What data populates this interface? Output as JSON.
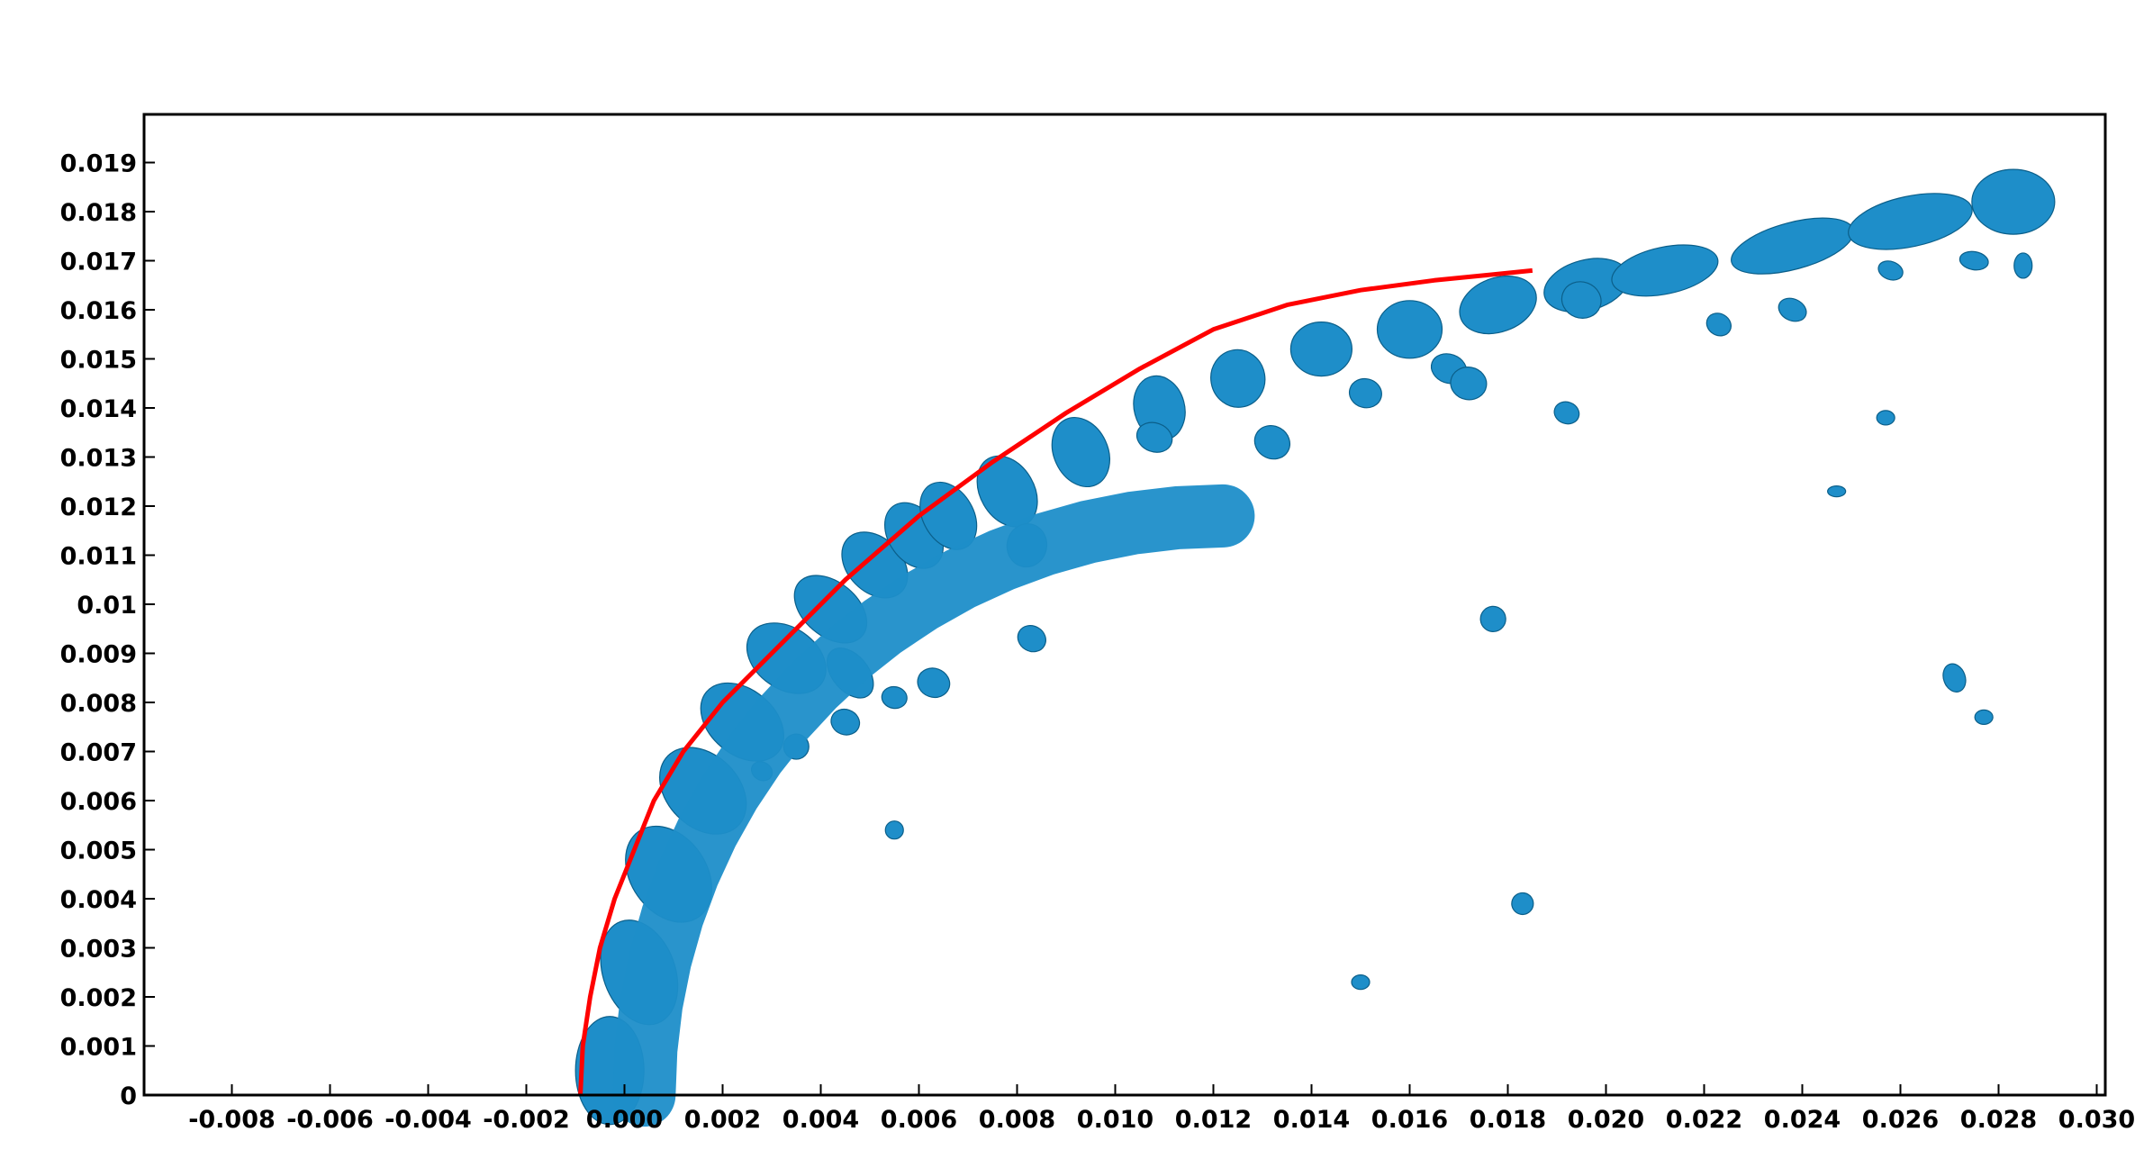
{
  "chart_data": {
    "type": "scatter",
    "title": "",
    "xlabel": "",
    "ylabel": "",
    "xlim": [
      -0.01,
      0.03
    ],
    "ylim": [
      0,
      0.0195
    ],
    "grid": false,
    "legend": "none",
    "colors": {
      "front_line": "#ff0000",
      "droplets": "#1e8ec9",
      "droplets_shadow": "#0b5f8a",
      "frame": "#000000"
    },
    "x_ticks": [
      {
        "value": -0.008,
        "label": "-0.008"
      },
      {
        "value": -0.006,
        "label": "-0.006"
      },
      {
        "value": -0.004,
        "label": "-0.004"
      },
      {
        "value": -0.002,
        "label": "-0.002"
      },
      {
        "value": 0.0,
        "label": "0.000"
      },
      {
        "value": 0.002,
        "label": "0.002"
      },
      {
        "value": 0.004,
        "label": "0.004"
      },
      {
        "value": 0.006,
        "label": "0.006"
      },
      {
        "value": 0.008,
        "label": "0.008"
      },
      {
        "value": 0.01,
        "label": "0.010"
      },
      {
        "value": 0.012,
        "label": "0.012"
      },
      {
        "value": 0.014,
        "label": "0.014"
      },
      {
        "value": 0.016,
        "label": "0.016"
      },
      {
        "value": 0.018,
        "label": "0.018"
      },
      {
        "value": 0.02,
        "label": "0.020"
      },
      {
        "value": 0.022,
        "label": "0.022"
      },
      {
        "value": 0.024,
        "label": "0.024"
      },
      {
        "value": 0.026,
        "label": "0.026"
      },
      {
        "value": 0.028,
        "label": "0.028"
      },
      {
        "value": 0.03,
        "label": "0.030"
      }
    ],
    "y_ticks": [
      {
        "value": 0,
        "label": "0"
      },
      {
        "value": 0.001,
        "label": "0.001"
      },
      {
        "value": 0.002,
        "label": "0.002"
      },
      {
        "value": 0.003,
        "label": "0.003"
      },
      {
        "value": 0.004,
        "label": "0.004"
      },
      {
        "value": 0.005,
        "label": "0.005"
      },
      {
        "value": 0.006,
        "label": "0.006"
      },
      {
        "value": 0.007,
        "label": "0.007"
      },
      {
        "value": 0.008,
        "label": "0.008"
      },
      {
        "value": 0.009,
        "label": "0.009"
      },
      {
        "value": 0.01,
        "label": "0.01"
      },
      {
        "value": 0.011,
        "label": "0.011"
      },
      {
        "value": 0.012,
        "label": "0.012"
      },
      {
        "value": 0.013,
        "label": "0.013"
      },
      {
        "value": 0.014,
        "label": "0.014"
      },
      {
        "value": 0.015,
        "label": "0.015"
      },
      {
        "value": 0.016,
        "label": "0.016"
      },
      {
        "value": 0.017,
        "label": "0.017"
      },
      {
        "value": 0.018,
        "label": "0.018"
      },
      {
        "value": 0.019,
        "label": "0.019"
      }
    ],
    "series": [
      {
        "kind": "line",
        "x": [
          -0.0009,
          -0.00085,
          -0.0007,
          -0.0005,
          -0.0002,
          0.0002,
          0.0006,
          0.0012,
          0.002,
          0.003,
          0.0045,
          0.006,
          0.0075,
          0.009,
          0.0105,
          0.012,
          0.0135,
          0.015,
          0.0165,
          0.0175,
          0.0185
        ],
        "y": [
          0.0,
          0.001,
          0.002,
          0.003,
          0.004,
          0.005,
          0.006,
          0.007,
          0.008,
          0.009,
          0.0105,
          0.0118,
          0.0129,
          0.0139,
          0.0148,
          0.0156,
          0.0161,
          0.0164,
          0.0166,
          0.0167,
          0.0168
        ]
      },
      {
        "kind": "droplets",
        "x": [
          -0.0003,
          0.0003,
          0.0009,
          0.0016,
          0.0024,
          0.0033,
          0.0042,
          0.0051,
          0.0059,
          0.0066,
          0.0078,
          0.0093,
          0.0109,
          0.0125,
          0.0142,
          0.016,
          0.0178,
          0.0196,
          0.0212,
          0.0238,
          0.0262,
          0.0283,
          0.0046,
          0.0063,
          0.0083,
          0.0082,
          0.0108,
          0.0132,
          0.0151,
          0.0168,
          0.0172,
          0.0195,
          0.0192,
          0.0223,
          0.0238,
          0.0275,
          0.0271,
          0.0045,
          0.0055,
          0.0035,
          0.0028,
          0.0055,
          0.0177,
          0.0183,
          0.0277,
          0.015,
          0.0258,
          0.0257,
          0.0247,
          0.0285
        ],
        "y": [
          0.0005,
          0.0025,
          0.0045,
          0.0062,
          0.0076,
          0.0089,
          0.0099,
          0.0108,
          0.0114,
          0.0118,
          0.0123,
          0.0131,
          0.014,
          0.0146,
          0.0152,
          0.0156,
          0.0161,
          0.0165,
          0.0168,
          0.0173,
          0.0178,
          0.0182,
          0.0086,
          0.0084,
          0.0093,
          0.0112,
          0.0134,
          0.0133,
          0.0143,
          0.0148,
          0.0145,
          0.0162,
          0.0139,
          0.0157,
          0.016,
          0.017,
          0.0085,
          0.0076,
          0.0081,
          0.0071,
          0.0066,
          0.0054,
          0.0097,
          0.0039,
          0.0077,
          0.0023,
          0.0168,
          0.0138,
          0.0123,
          0.0169
        ]
      }
    ]
  }
}
